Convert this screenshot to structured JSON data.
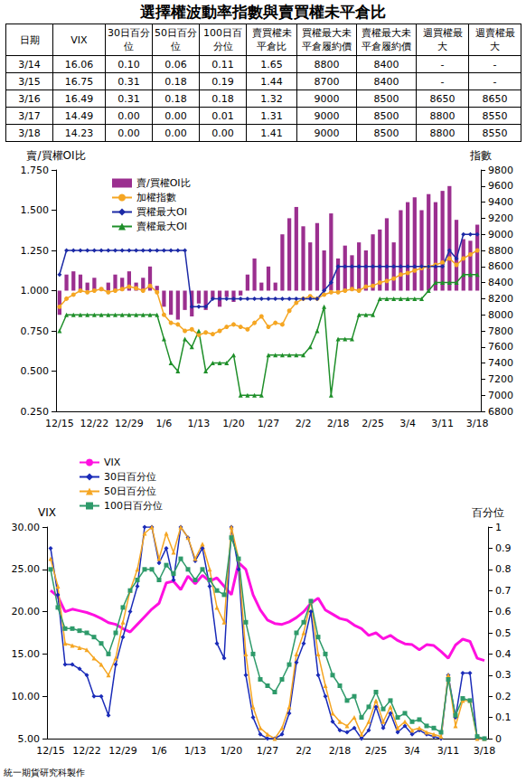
{
  "title": "選擇權波動率指數與賣買權未平倉比",
  "table": {
    "header": [
      "日期",
      "VIX",
      "30日百分位",
      "50日百分位",
      "100日百分位",
      "賣買權未平倉比",
      "買權最大未平倉履約價",
      "賣權最大未平倉履約價",
      "週買權最大",
      "週賣權最大"
    ],
    "rows": [
      [
        "3/14",
        "16.06",
        "0.10",
        "0.06",
        "0.11",
        "1.65",
        "8800",
        "8400",
        "-",
        "-"
      ],
      [
        "3/15",
        "16.75",
        "0.31",
        "0.18",
        "0.19",
        "1.44",
        "8700",
        "8400",
        "-",
        "-"
      ],
      [
        "3/16",
        "16.49",
        "0.31",
        "0.18",
        "0.18",
        "1.32",
        "9000",
        "8500",
        "8650",
        "8650"
      ],
      [
        "3/17",
        "14.49",
        "0.00",
        "0.00",
        "0.01",
        "1.31",
        "9000",
        "8500",
        "8800",
        "8550"
      ],
      [
        "3/18",
        "14.23",
        "0.00",
        "0.00",
        "0.00",
        "1.41",
        "9000",
        "8500",
        "8800",
        "8550"
      ]
    ]
  },
  "chart_data": [
    {
      "type": "combo",
      "x": [
        "12/15",
        null,
        null,
        null,
        null,
        "12/22",
        null,
        null,
        null,
        null,
        "12/29",
        null,
        null,
        null,
        null,
        "1/6",
        null,
        null,
        null,
        null,
        "1/13",
        null,
        null,
        null,
        null,
        "1/20",
        null,
        null,
        null,
        null,
        "1/27",
        null,
        null,
        null,
        null,
        "2/2",
        null,
        null,
        null,
        null,
        "2/18",
        null,
        null,
        null,
        null,
        "2/25",
        null,
        null,
        null,
        null,
        "3/4",
        null,
        null,
        null,
        null,
        "3/11",
        null,
        null,
        null,
        null,
        "3/18"
      ],
      "ylabel": "賣/買權OI比",
      "y2label": "指數",
      "ylim": [
        0.25,
        1.75
      ],
      "yticks": [
        {
          "value": 0.25,
          "label": "0.250"
        },
        {
          "value": 0.5,
          "label": "0.500"
        },
        {
          "value": 0.75,
          "label": "0.750"
        },
        {
          "value": 1,
          "label": "1.000"
        },
        {
          "value": 1.25,
          "label": "1.250"
        },
        {
          "value": 1.5,
          "label": "1.500"
        },
        {
          "value": 1.75,
          "label": "1.750"
        }
      ],
      "y2lim": [
        6800,
        9800
      ],
      "y2ticks": [
        6800,
        7000,
        7200,
        7400,
        7600,
        7800,
        8000,
        8200,
        8400,
        8600,
        8800,
        9000,
        9200,
        9400,
        9600,
        9800
      ],
      "grid": false,
      "legend": "upper left",
      "series": [
        {
          "name": "賣/買權OI比",
          "type": "bar",
          "color": "#9b2f8f",
          "baseline": 1,
          "values": [
            0.85,
            1.1,
            1.12,
            1.1,
            1.05,
            1.08,
            1.02,
            1.05,
            1.1,
            1.08,
            1.12,
            1.05,
            1.08,
            1.15,
            1.03,
            0.9,
            0.85,
            0.82,
            0.88,
            0.84,
            0.92,
            0.88,
            0.95,
            0.9,
            0.96,
            0.93,
            0.97,
            1.1,
            1.2,
            1.05,
            1.15,
            1.05,
            1.35,
            1.45,
            1.52,
            1.4,
            1.3,
            1.42,
            1.25,
            1.48,
            1.2,
            1.28,
            1.22,
            1.3,
            1.25,
            1.35,
            1.38,
            1.45,
            1.3,
            1.5,
            1.55,
            1.58,
            1.5,
            1.6,
            1.55,
            1.62,
            1.65,
            1.44,
            1.32,
            1.31,
            1.41
          ]
        },
        {
          "name": "加權指數",
          "type": "line",
          "axis": "y2",
          "color": "#f5a623",
          "marker": "circle",
          "values": [
            8100,
            8200,
            8250,
            8300,
            8280,
            8300,
            8320,
            8280,
            8300,
            8320,
            8350,
            8330,
            8300,
            8360,
            8280,
            8000,
            7900,
            7880,
            7800,
            7820,
            7750,
            7780,
            7760,
            7800,
            7850,
            7880,
            7850,
            7820,
            7900,
            7980,
            7850,
            7900,
            7880,
            8050,
            8150,
            8200,
            8230,
            8200,
            8250,
            8280,
            8280,
            8300,
            8320,
            8300,
            8350,
            8360,
            8400,
            8420,
            8450,
            8500,
            8520,
            8550,
            8580,
            8600,
            8620,
            8650,
            8700,
            8620,
            8700,
            8750,
            8800
          ]
        },
        {
          "name": "買權最大OI",
          "type": "line",
          "axis": "y2",
          "color": "#1c2aa6",
          "marker": "diamond",
          "values": [
            8500,
            8800,
            8800,
            8800,
            8800,
            8800,
            8800,
            8800,
            8800,
            8800,
            8800,
            8800,
            8800,
            8800,
            8800,
            8800,
            8800,
            8800,
            8800,
            8100,
            8100,
            8100,
            8200,
            8200,
            8200,
            8200,
            8200,
            8200,
            8200,
            8200,
            8200,
            8200,
            8200,
            8200,
            8200,
            8200,
            8200,
            8200,
            8300,
            8400,
            8600,
            8600,
            8600,
            8600,
            8600,
            8600,
            8600,
            8600,
            8600,
            8600,
            8600,
            8600,
            8600,
            8600,
            8600,
            8600,
            8800,
            8700,
            9000,
            9000,
            9000
          ]
        },
        {
          "name": "賣權最大OI",
          "type": "line",
          "axis": "y2",
          "color": "#1f8f2a",
          "marker": "triangle",
          "values": [
            7800,
            8000,
            8000,
            8000,
            8000,
            8000,
            8000,
            8000,
            8000,
            8000,
            8000,
            8000,
            8000,
            8000,
            8000,
            7700,
            7400,
            7300,
            7700,
            7600,
            7800,
            7300,
            7400,
            7400,
            7400,
            7500,
            7000,
            7000,
            7000,
            7000,
            7500,
            7500,
            7500,
            7500,
            7500,
            7500,
            7600,
            7800,
            8100,
            7000,
            7700,
            7700,
            7700,
            8000,
            8000,
            8000,
            8200,
            8200,
            8200,
            8200,
            8200,
            8200,
            8200,
            8300,
            8400,
            8400,
            8400,
            8400,
            8500,
            8500,
            8500
          ]
        }
      ]
    },
    {
      "type": "line",
      "x": [
        "12/15",
        null,
        null,
        null,
        null,
        "12/22",
        null,
        null,
        null,
        null,
        "12/29",
        null,
        null,
        null,
        null,
        "1/6",
        null,
        null,
        null,
        null,
        "1/13",
        null,
        null,
        null,
        null,
        "1/20",
        null,
        null,
        null,
        null,
        "1/27",
        null,
        null,
        null,
        null,
        "2/2",
        null,
        null,
        null,
        null,
        "2/18",
        null,
        null,
        null,
        null,
        "2/25",
        null,
        null,
        null,
        null,
        "3/4",
        null,
        null,
        null,
        null,
        "3/11",
        null,
        null,
        null,
        null,
        "3/18"
      ],
      "ylabel": "VIX",
      "y2label": "百分位",
      "ylim": [
        5,
        30
      ],
      "yticks": [
        {
          "value": 5,
          "label": "5.00"
        },
        {
          "value": 10,
          "label": "10.00"
        },
        {
          "value": 15,
          "label": "15.00"
        },
        {
          "value": 20,
          "label": "20.00"
        },
        {
          "value": 25,
          "label": "25.00"
        },
        {
          "value": 30,
          "label": "30.00"
        }
      ],
      "y2lim": [
        0,
        1
      ],
      "y2ticks": [
        0,
        0.1,
        0.2,
        0.3,
        0.4,
        0.5,
        0.6,
        0.7,
        0.8,
        0.9,
        1
      ],
      "grid": false,
      "legend": "upper left",
      "series": [
        {
          "name": "VIX",
          "color": "#ff10e0",
          "marker": "none",
          "values": [
            22.5,
            21.8,
            20.0,
            20.3,
            20.1,
            19.9,
            19.6,
            19.2,
            18.7,
            18.5,
            18.0,
            17.6,
            18.5,
            19.4,
            20.3,
            21.0,
            23.4,
            23.6,
            22.6,
            24.2,
            23.3,
            24.3,
            23.6,
            24.0,
            23.0,
            22.0,
            25.8,
            25.0,
            22.0,
            20.2,
            19.0,
            18.6,
            18.5,
            18.8,
            19.3,
            20.0,
            21.0,
            21.6,
            20.2,
            19.7,
            19.2,
            19.0,
            18.4,
            18.0,
            17.2,
            17.5,
            16.8,
            17.2,
            16.6,
            16.2,
            16.1,
            15.5,
            16.1,
            16.0,
            15.3,
            14.5,
            16.06,
            16.75,
            16.49,
            14.49,
            14.23
          ]
        },
        {
          "name": "30日百分位",
          "axis": "y2",
          "color": "#1a2bb8",
          "marker": "diamond",
          "values": [
            0.9,
            0.68,
            0.35,
            0.35,
            0.33,
            0.3,
            0.2,
            0.2,
            0.11,
            0.35,
            0.48,
            0.6,
            0.72,
            1.0,
            1.0,
            0.83,
            0.9,
            0.75,
            1.0,
            0.95,
            0.84,
            0.9,
            0.72,
            0.45,
            0.38,
            1.0,
            0.8,
            0.3,
            0.1,
            0.02,
            0.0,
            0.0,
            0.02,
            0.12,
            0.36,
            0.45,
            0.6,
            0.3,
            0.2,
            0.08,
            0.04,
            0.03,
            0.05,
            0.0,
            0.04,
            0.15,
            0.05,
            0.12,
            0.03,
            0.06,
            0.02,
            0.04,
            0.02,
            0.01,
            0.0,
            0.3,
            0.1,
            0.31,
            0.31,
            0.0,
            0.0
          ]
        },
        {
          "name": "50日百分位",
          "axis": "y2",
          "color": "#f5a623",
          "marker": "triangle",
          "values": [
            0.85,
            0.72,
            0.45,
            0.44,
            0.43,
            0.42,
            0.38,
            0.35,
            0.3,
            0.38,
            0.55,
            0.7,
            0.8,
            0.97,
            1.0,
            0.85,
            0.97,
            0.88,
            1.0,
            0.95,
            0.85,
            0.92,
            0.8,
            0.62,
            0.55,
            1.0,
            0.85,
            0.4,
            0.15,
            0.05,
            0.02,
            0.0,
            0.05,
            0.15,
            0.4,
            0.5,
            0.65,
            0.4,
            0.25,
            0.12,
            0.08,
            0.06,
            0.1,
            0.02,
            0.08,
            0.18,
            0.08,
            0.15,
            0.05,
            0.08,
            0.04,
            0.05,
            0.03,
            0.02,
            0.01,
            0.3,
            0.06,
            0.18,
            0.18,
            0.0,
            0.0
          ]
        },
        {
          "name": "100日百分位",
          "axis": "y2",
          "color": "#2e9a6a",
          "marker": "square",
          "values": [
            0.8,
            0.62,
            0.52,
            0.52,
            0.51,
            0.5,
            0.48,
            0.45,
            0.4,
            0.5,
            0.62,
            0.7,
            0.75,
            0.8,
            0.8,
            0.75,
            0.82,
            0.78,
            0.85,
            0.8,
            0.75,
            0.8,
            0.75,
            0.7,
            0.68,
            0.95,
            0.85,
            0.55,
            0.4,
            0.28,
            0.25,
            0.22,
            0.28,
            0.35,
            0.5,
            0.55,
            0.65,
            0.48,
            0.4,
            0.3,
            0.25,
            0.18,
            0.2,
            0.1,
            0.15,
            0.22,
            0.14,
            0.18,
            0.1,
            0.12,
            0.08,
            0.09,
            0.06,
            0.05,
            0.03,
            0.28,
            0.11,
            0.19,
            0.18,
            0.01,
            0.0
          ]
        }
      ]
    }
  ],
  "footer": "統一期貨研究科製作"
}
